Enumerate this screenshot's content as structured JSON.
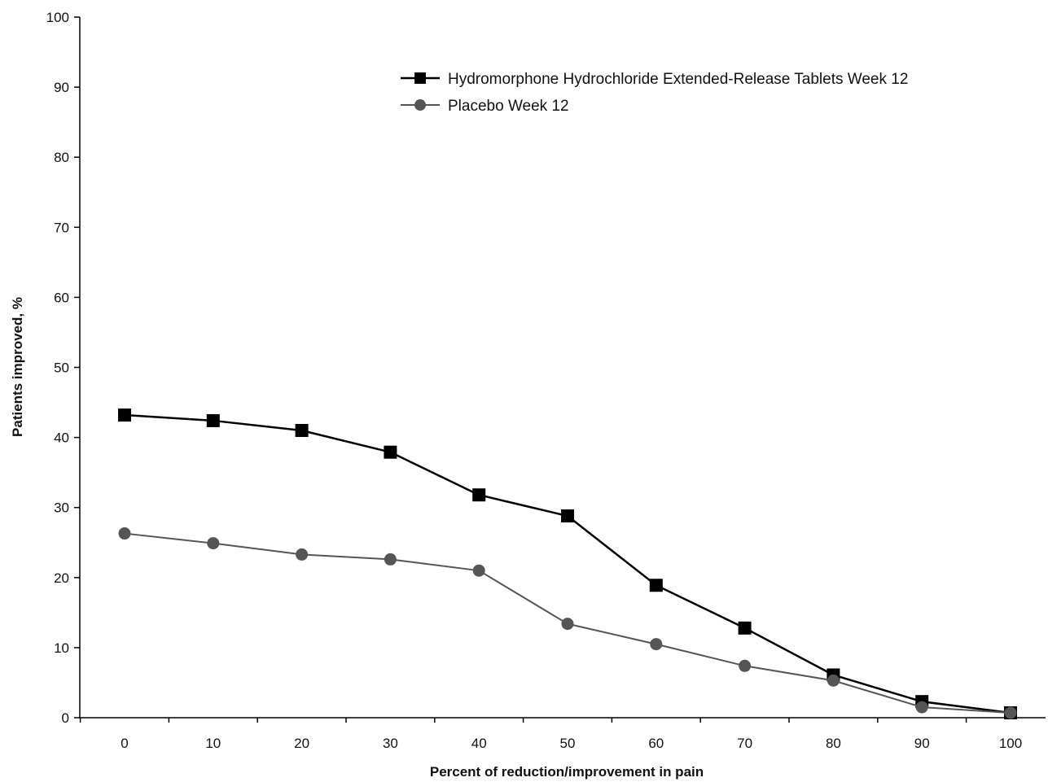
{
  "chart_data": {
    "type": "line",
    "xlabel": "Percent of reduction/improvement in pain",
    "ylabel": "Patients improved, %",
    "xlim": [
      0,
      100
    ],
    "ylim": [
      0,
      100
    ],
    "xticks": [
      0,
      10,
      20,
      30,
      40,
      50,
      60,
      70,
      80,
      90,
      100
    ],
    "yticks": [
      0,
      10,
      20,
      30,
      40,
      50,
      60,
      70,
      80,
      90,
      100
    ],
    "x": [
      0,
      10,
      20,
      30,
      40,
      50,
      60,
      70,
      80,
      90,
      100
    ],
    "grid": false,
    "legend_position": "top-right",
    "series": [
      {
        "name": "Hydromorphone Hydrochloride Extended-Release Tablets Week 12",
        "marker": "square",
        "color": "#000000",
        "values": [
          43.2,
          42.4,
          41.0,
          37.9,
          31.8,
          28.8,
          18.9,
          12.8,
          6.1,
          2.3,
          0.7
        ]
      },
      {
        "name": "Placebo Week 12",
        "marker": "circle",
        "color": "#555555",
        "values": [
          26.3,
          24.9,
          23.3,
          22.6,
          21.0,
          13.4,
          10.5,
          7.4,
          5.3,
          1.5,
          0.7
        ]
      }
    ]
  }
}
